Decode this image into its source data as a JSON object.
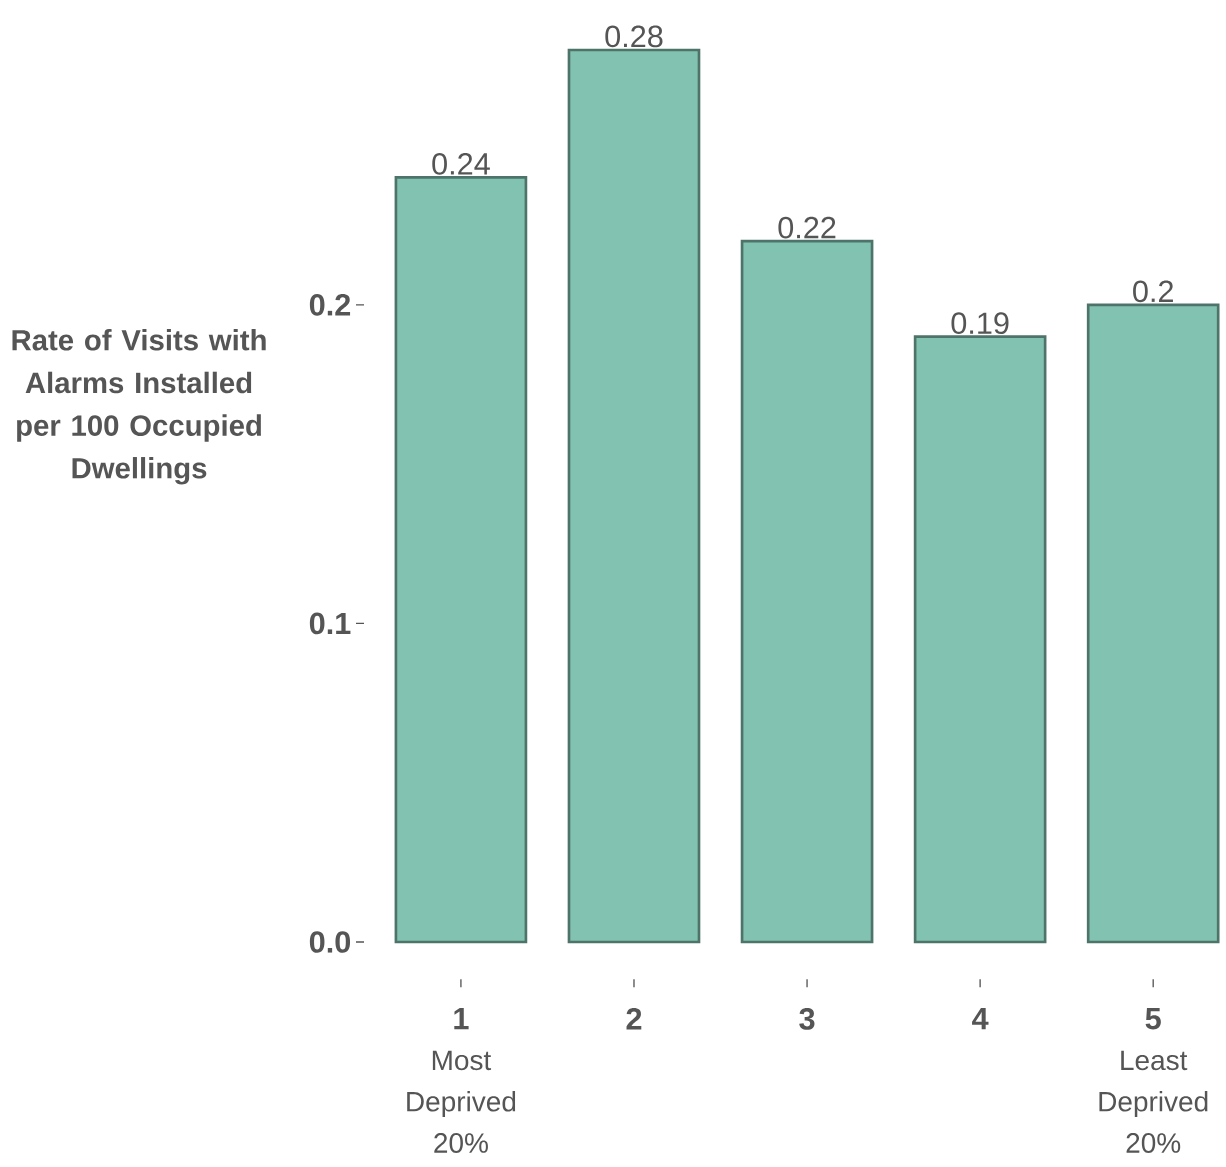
{
  "chart_data": {
    "type": "bar",
    "ylabel": "Rate of Visits with Alarms Installed per 100 Occupied Dwellings",
    "categories": [
      "1",
      "2",
      "3",
      "4",
      "5"
    ],
    "values": [
      0.24,
      0.28,
      0.22,
      0.19,
      0.2
    ],
    "color": "#82c2b0",
    "ylim": [
      0,
      0.28
    ],
    "yticks": [
      {
        "value": 0,
        "label": "0.0"
      },
      0.1,
      0.2
    ],
    "data_labels": true,
    "grid": false,
    "annotations": [
      "Most Deprived 20%",
      "Least Deprived 20%"
    ]
  }
}
